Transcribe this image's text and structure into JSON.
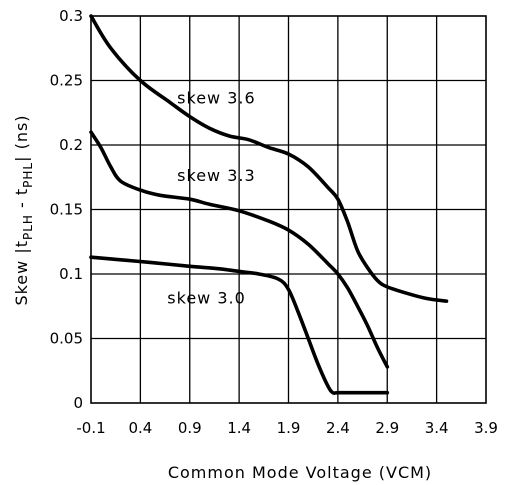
{
  "chart_data": {
    "type": "line",
    "xlabel": "Common Mode Voltage (VCM)",
    "ylabel_parts": {
      "prefix": "Skew |t",
      "sub1": "PLH",
      "mid": " - t",
      "sub2": "PHL",
      "suffix": "| (ns)"
    },
    "xlim": [
      -0.1,
      3.9
    ],
    "ylim": [
      0,
      0.3
    ],
    "x_ticks": [
      -0.1,
      0.4,
      0.9,
      1.4,
      1.9,
      2.4,
      2.9,
      3.4,
      3.9
    ],
    "x_tick_labels": [
      "-0.1",
      "0.4",
      "0.9",
      "1.4",
      "1.9",
      "2.4",
      "2.9",
      "3.4",
      "3.9"
    ],
    "y_ticks": [
      0,
      0.05,
      0.1,
      0.15,
      0.2,
      0.25,
      0.3
    ],
    "y_tick_labels": [
      "0",
      "0.05",
      "0.1",
      "0.15",
      "0.2",
      "0.25",
      "0.3"
    ],
    "grid": true,
    "series": [
      {
        "name": "skew 3.6",
        "points": [
          [
            -0.1,
            0.3
          ],
          [
            0.1,
            0.275
          ],
          [
            0.4,
            0.25
          ],
          [
            0.7,
            0.233
          ],
          [
            0.9,
            0.222
          ],
          [
            1.1,
            0.213
          ],
          [
            1.3,
            0.207
          ],
          [
            1.5,
            0.204
          ],
          [
            1.7,
            0.198
          ],
          [
            1.9,
            0.193
          ],
          [
            2.1,
            0.183
          ],
          [
            2.3,
            0.167
          ],
          [
            2.4,
            0.158
          ],
          [
            2.5,
            0.14
          ],
          [
            2.6,
            0.118
          ],
          [
            2.7,
            0.105
          ],
          [
            2.8,
            0.095
          ],
          [
            2.9,
            0.09
          ],
          [
            3.1,
            0.085
          ],
          [
            3.3,
            0.081
          ],
          [
            3.5,
            0.079
          ]
        ]
      },
      {
        "name": "skew 3.3",
        "points": [
          [
            -0.1,
            0.21
          ],
          [
            0.0,
            0.198
          ],
          [
            0.1,
            0.183
          ],
          [
            0.2,
            0.172
          ],
          [
            0.4,
            0.165
          ],
          [
            0.6,
            0.161
          ],
          [
            0.9,
            0.158
          ],
          [
            1.1,
            0.154
          ],
          [
            1.4,
            0.149
          ],
          [
            1.7,
            0.141
          ],
          [
            1.9,
            0.134
          ],
          [
            2.1,
            0.123
          ],
          [
            2.3,
            0.108
          ],
          [
            2.4,
            0.1
          ],
          [
            2.5,
            0.089
          ],
          [
            2.6,
            0.075
          ],
          [
            2.7,
            0.06
          ],
          [
            2.8,
            0.043
          ],
          [
            2.9,
            0.028
          ]
        ]
      },
      {
        "name": "skew 3.0",
        "points": [
          [
            -0.1,
            0.113
          ],
          [
            0.2,
            0.111
          ],
          [
            0.5,
            0.109
          ],
          [
            0.9,
            0.106
          ],
          [
            1.2,
            0.104
          ],
          [
            1.4,
            0.102
          ],
          [
            1.6,
            0.1
          ],
          [
            1.8,
            0.096
          ],
          [
            1.9,
            0.088
          ],
          [
            2.0,
            0.07
          ],
          [
            2.1,
            0.05
          ],
          [
            2.2,
            0.03
          ],
          [
            2.3,
            0.013
          ],
          [
            2.35,
            0.008
          ],
          [
            2.4,
            0.008
          ],
          [
            2.6,
            0.008
          ],
          [
            2.9,
            0.008
          ]
        ]
      }
    ],
    "annotations": [
      {
        "text": "skew 3.6",
        "x": 1.17,
        "y": 0.232
      },
      {
        "text": "skew 3.3",
        "x": 1.17,
        "y": 0.172
      },
      {
        "text": "skew 3.0",
        "x": 1.07,
        "y": 0.077
      }
    ]
  }
}
